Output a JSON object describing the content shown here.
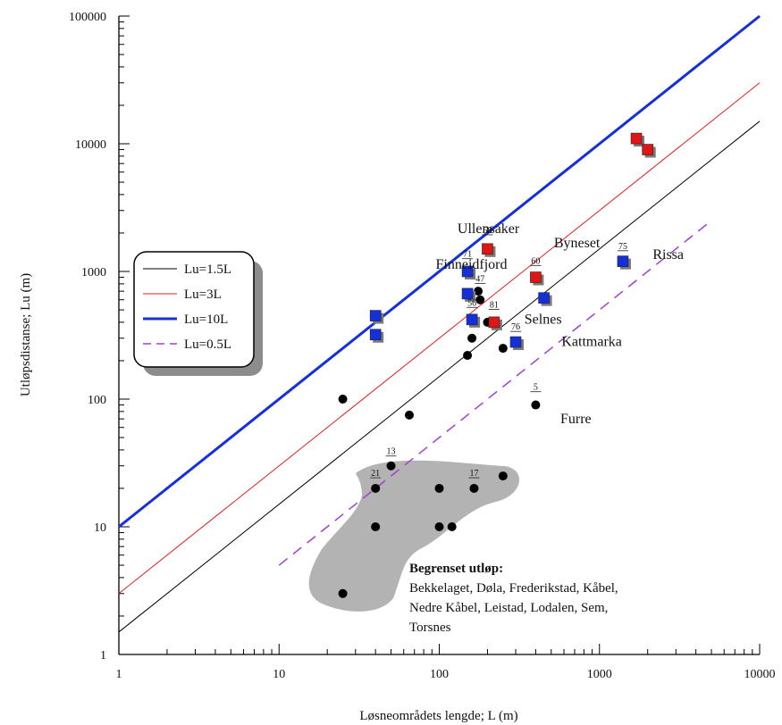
{
  "chart_data": {
    "type": "scatter",
    "title": "",
    "xlabel": "Løsneområdets lengde; L (m)",
    "ylabel": "Utløpsdistanse; Lu (m)",
    "xscale": "log",
    "yscale": "log",
    "xlim": [
      1,
      10000
    ],
    "ylim": [
      1,
      100000
    ],
    "x_ticks": [
      "1",
      "10",
      "100",
      "1000",
      "10000"
    ],
    "y_ticks": [
      "1",
      "10",
      "100",
      "1000",
      "10000",
      "100000"
    ],
    "legend_position": "left",
    "legend": [
      {
        "label": "Lu=1.5L",
        "factor": 1.5,
        "color": "#000000",
        "style": "solid",
        "width": 1
      },
      {
        "label": "Lu=3L",
        "factor": 3,
        "color": "#e02020",
        "style": "solid",
        "width": 1
      },
      {
        "label": "Lu=10L",
        "factor": 10,
        "color": "#1530d8",
        "style": "solid",
        "width": 3
      },
      {
        "label": "Lu=0.5L",
        "factor": 0.5,
        "color": "#a040d0",
        "style": "dashed",
        "width": 1.5,
        "x_start": 10
      }
    ],
    "series": [
      {
        "marker": "circle",
        "color": "#000000",
        "points": [
          {
            "x": 25,
            "y": 100
          },
          {
            "x": 65,
            "y": 75
          },
          {
            "x": 150,
            "y": 220
          },
          {
            "x": 160,
            "y": 300
          },
          {
            "x": 175,
            "y": 700
          },
          {
            "x": 180,
            "y": 600
          },
          {
            "x": 200,
            "y": 400
          },
          {
            "x": 250,
            "y": 250
          },
          {
            "x": 400,
            "y": 90
          },
          {
            "x": 50,
            "y": 30
          },
          {
            "x": 40,
            "y": 20
          },
          {
            "x": 40,
            "y": 10
          },
          {
            "x": 100,
            "y": 20
          },
          {
            "x": 100,
            "y": 10
          },
          {
            "x": 120,
            "y": 10
          },
          {
            "x": 165,
            "y": 20
          },
          {
            "x": 250,
            "y": 25
          },
          {
            "x": 25,
            "y": 3
          }
        ]
      },
      {
        "marker": "square",
        "color": "#1530d8",
        "points": [
          {
            "x": 40,
            "y": 450
          },
          {
            "x": 40,
            "y": 320
          },
          {
            "x": 150,
            "y": 1000
          },
          {
            "x": 150,
            "y": 670
          },
          {
            "x": 160,
            "y": 420
          },
          {
            "x": 300,
            "y": 280
          },
          {
            "x": 450,
            "y": 620
          },
          {
            "x": 1400,
            "y": 1200
          }
        ]
      },
      {
        "marker": "square",
        "color": "#e01515",
        "points": [
          {
            "x": 200,
            "y": 1500
          },
          {
            "x": 220,
            "y": 400
          },
          {
            "x": 400,
            "y": 900
          },
          {
            "x": 1700,
            "y": 11000
          },
          {
            "x": 2000,
            "y": 9000
          }
        ]
      }
    ],
    "point_labels": [
      {
        "text": "Ullensaker",
        "x": 130,
        "y": 2000
      },
      {
        "text": "Finneidfjord",
        "x": 95,
        "y": 1050
      },
      {
        "text": "Byneset",
        "x": 520,
        "y": 1550
      },
      {
        "text": "Rissa",
        "x": 2150,
        "y": 1250
      },
      {
        "text": "Selnes",
        "x": 340,
        "y": 390
      },
      {
        "text": "Kattmarka",
        "x": 580,
        "y": 260
      },
      {
        "text": "Furre",
        "x": 570,
        "y": 65
      }
    ],
    "number_labels": [
      {
        "text": "58",
        "x": 200,
        "y": 2000
      },
      {
        "text": "71",
        "x": 150,
        "y": 1300
      },
      {
        "text": "47",
        "x": 180,
        "y": 830
      },
      {
        "text": "60",
        "x": 400,
        "y": 1150
      },
      {
        "text": "75",
        "x": 1400,
        "y": 1500
      },
      {
        "text": "56",
        "x": 160,
        "y": 540
      },
      {
        "text": "81",
        "x": 220,
        "y": 520
      },
      {
        "text": "76",
        "x": 300,
        "y": 350
      },
      {
        "text": "5",
        "x": 400,
        "y": 118
      },
      {
        "text": "13",
        "x": 50,
        "y": 37
      },
      {
        "text": "21",
        "x": 40,
        "y": 25
      },
      {
        "text": "17",
        "x": 165,
        "y": 25
      }
    ],
    "annotation": {
      "title": "Begrenset utløp:",
      "lines": [
        "Bekkelaget, Døla, Frederikstad, Kåbel,",
        "Nedre Kåbel, Leistad, Lodalen, Sem,",
        "Torsnes"
      ]
    }
  },
  "colors": {
    "blob": "#b3b3b3",
    "axis": "#000000"
  }
}
